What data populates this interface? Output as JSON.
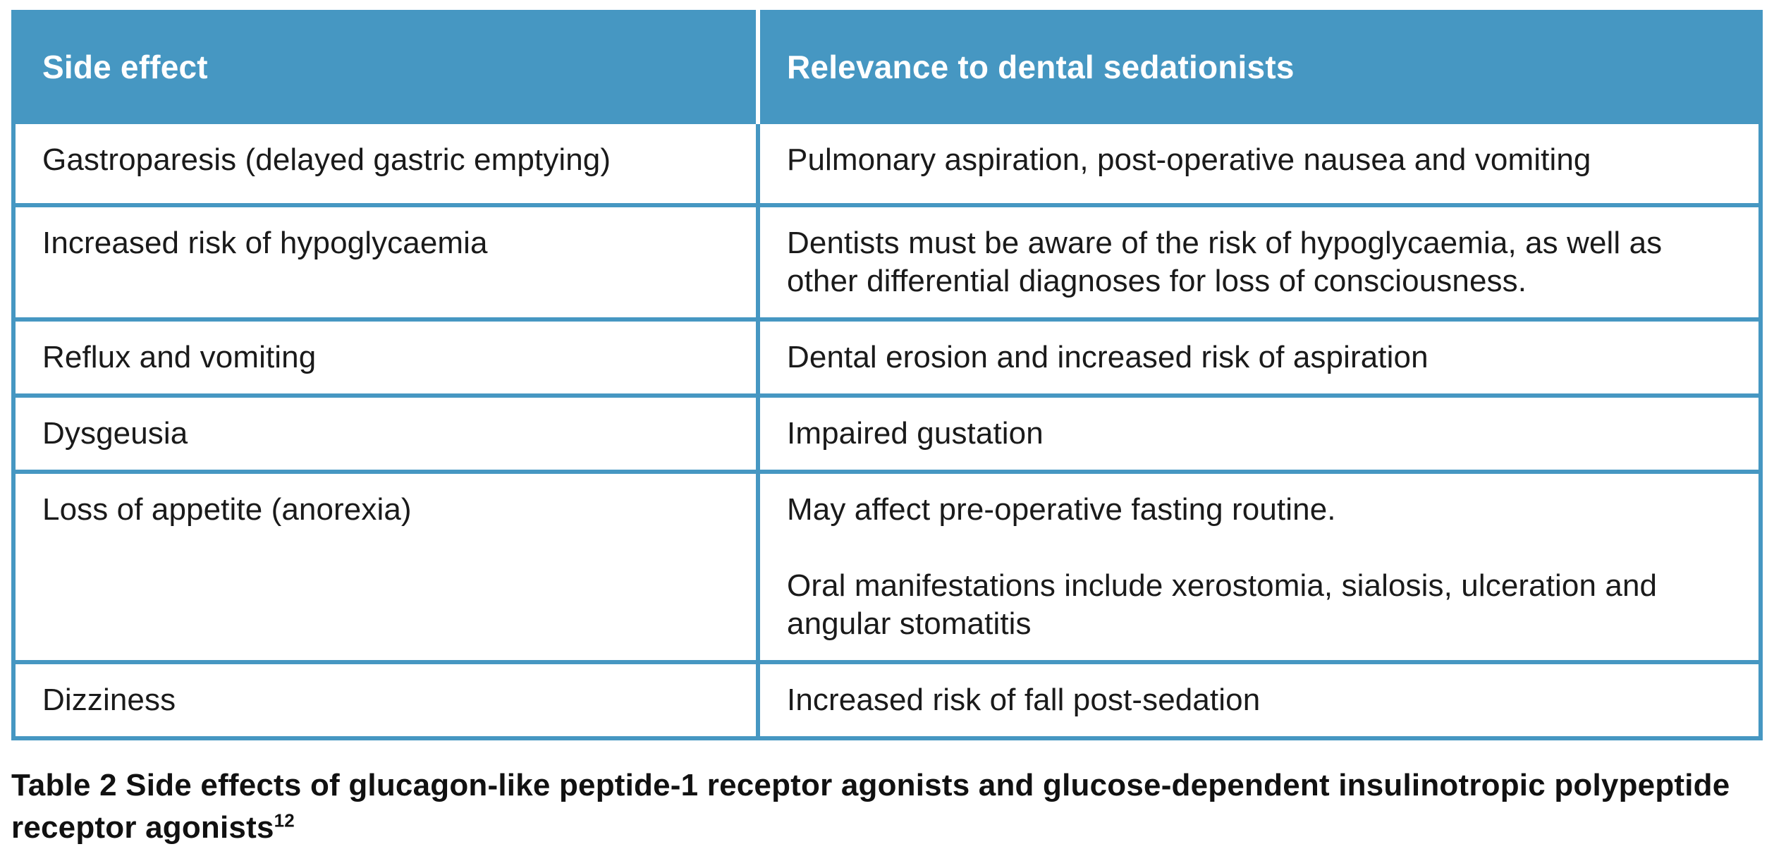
{
  "page": {
    "background": "#ffffff"
  },
  "colors": {
    "header_bg": "#4697c2",
    "grid_border": "#4697c2",
    "header_divider": "#ffffff",
    "header_text": "#ffffff",
    "body_text": "#1a1a1a",
    "caption_text": "#111111"
  },
  "table": {
    "columns": [
      {
        "label": "Side effect"
      },
      {
        "label": "Relevance to dental sedationists"
      }
    ],
    "rows": [
      {
        "side_effect": "Gastroparesis (delayed gastric emptying)",
        "relevance": "Pulmonary aspiration, post-operative nausea and vomiting"
      },
      {
        "side_effect": "Increased risk of hypoglycaemia",
        "relevance": "Dentists must be aware of the risk of hypoglycaemia, as well as other differential diagnoses for loss of consciousness."
      },
      {
        "side_effect": "Reflux and vomiting",
        "relevance": "Dental erosion and increased risk of aspiration"
      },
      {
        "side_effect": "Dysgeusia",
        "relevance": "Impaired gustation"
      },
      {
        "side_effect": "Loss of appetite (anorexia)",
        "relevance": "May affect pre-operative fasting routine.\n\nOral manifestations include xerostomia, sialosis, ulceration and angular stomatitis"
      },
      {
        "side_effect": "Dizziness",
        "relevance": "Increased risk of fall post-sedation"
      }
    ]
  },
  "caption": {
    "text": "Table 2 Side effects of glucagon-like peptide-1 receptor agonists and glucose-dependent insulinotropic polypeptide receptor agonists",
    "reference": "12"
  }
}
